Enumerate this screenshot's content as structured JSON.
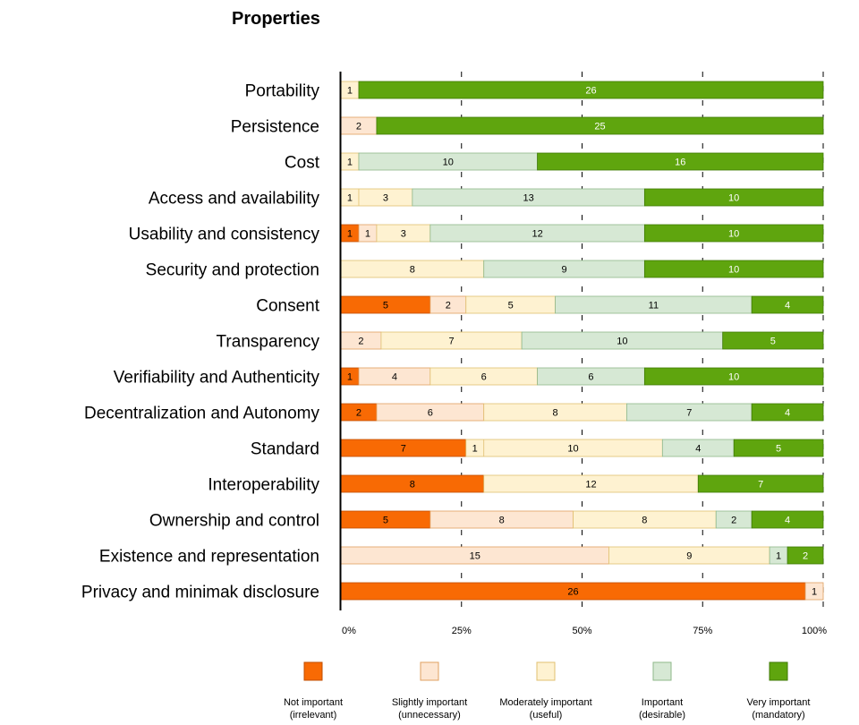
{
  "chart_data": {
    "type": "bar",
    "orientation": "horizontal",
    "stacked": "percent",
    "title": "Properties",
    "categories": [
      "Portability",
      "Persistence",
      "Cost",
      "Access and availability",
      "Usability and consistency",
      "Security and protection",
      "Consent",
      "Transparency",
      "Verifiability and Authenticity",
      "Decentralization and Autonomy",
      "Standard",
      "Interoperability",
      "Ownership and control",
      "Existence and representation",
      "Privacy and minimak disclosure"
    ],
    "series": [
      {
        "name": "Not important (irrelevant)",
        "legend_lines": [
          "Not important",
          "(irrelevant)"
        ],
        "color": "#f86a04",
        "border": "#c04e00",
        "text_color": "#000000",
        "values": [
          0,
          0,
          0,
          0,
          1,
          0,
          5,
          0,
          1,
          2,
          7,
          8,
          5,
          0,
          26
        ]
      },
      {
        "name": "Slightly important (unnecessary)",
        "legend_lines": [
          "Slightly important",
          "(unnecessary)"
        ],
        "color": "#fde6d2",
        "border": "#e0a060",
        "text_color": "#000000",
        "values": [
          0,
          2,
          0,
          0,
          1,
          0,
          2,
          2,
          4,
          6,
          0,
          0,
          8,
          15,
          1
        ]
      },
      {
        "name": "Moderately important (useful)",
        "legend_lines": [
          "Moderately important",
          "(useful)"
        ],
        "color": "#fef2d1",
        "border": "#e0c070",
        "text_color": "#000000",
        "values": [
          1,
          0,
          1,
          4,
          3,
          8,
          5,
          7,
          6,
          8,
          11,
          12,
          8,
          9,
          0
        ]
      },
      {
        "name": "Important (desirable)",
        "legend_lines": [
          "Important",
          "(desirable)"
        ],
        "color": "#d6e8d4",
        "border": "#8fb88a",
        "text_color": "#000000",
        "values": [
          0,
          0,
          10,
          13,
          12,
          9,
          11,
          10,
          6,
          7,
          4,
          0,
          2,
          1,
          0
        ]
      },
      {
        "name": "Very important (mandatory)",
        "legend_lines": [
          "Very important",
          "(mandatory)"
        ],
        "color": "#5fa50e",
        "border": "#3f7a05",
        "text_color": "#ffffff",
        "values": [
          26,
          25,
          16,
          10,
          10,
          10,
          4,
          5,
          10,
          4,
          5,
          7,
          4,
          2,
          0
        ]
      }
    ],
    "segment_labels": [
      [
        "",
        "",
        "1",
        "",
        "26"
      ],
      [
        "",
        "2",
        "",
        "",
        "25"
      ],
      [
        "",
        "",
        "1",
        "10",
        "16"
      ],
      [
        "",
        "",
        "1|3",
        "13",
        "10"
      ],
      [
        "1",
        "1",
        "3",
        "12",
        "10"
      ],
      [
        "",
        "",
        "8",
        "9",
        "10"
      ],
      [
        "5",
        "2",
        "5",
        "11",
        "4"
      ],
      [
        "",
        "2",
        "7",
        "10",
        "5"
      ],
      [
        "1",
        "4",
        "6",
        "6",
        "10"
      ],
      [
        "2",
        "6",
        "8",
        "7",
        "4"
      ],
      [
        "7",
        "",
        "1|10",
        "4",
        "5"
      ],
      [
        "8",
        "",
        "12",
        "",
        "7"
      ],
      [
        "5",
        "8",
        "8",
        "2",
        "4"
      ],
      [
        "",
        "15",
        "9",
        "1",
        "2"
      ],
      [
        "26",
        "1",
        "",
        "",
        ""
      ]
    ],
    "xaxis": {
      "ticks": [
        0,
        25,
        50,
        75,
        100
      ],
      "tick_labels": [
        "0%",
        "25%",
        "50%",
        "75%",
        "100%"
      ],
      "range": [
        0,
        100
      ]
    },
    "grid": true,
    "legend_position": "bottom"
  }
}
